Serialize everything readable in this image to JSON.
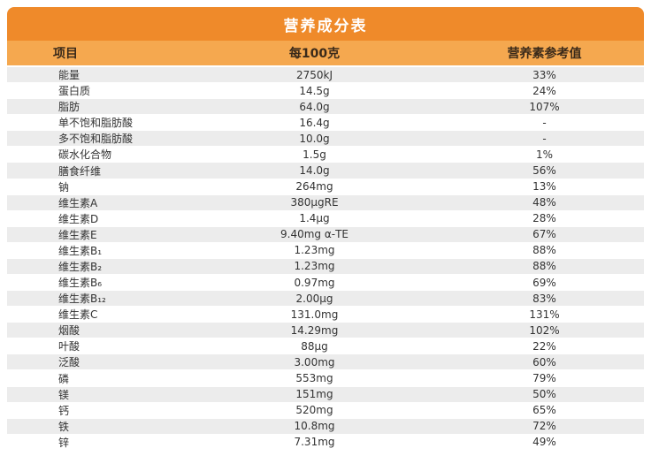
{
  "title": "营养成分表",
  "table": {
    "header": [
      "项目",
      "每100克",
      "营养素参考值"
    ],
    "rows": [
      [
        "能量",
        "2750kJ",
        "33%"
      ],
      [
        "蛋白质",
        "14.5g",
        "24%"
      ],
      [
        "脂肪",
        "64.0g",
        "107%"
      ],
      [
        "单不饱和脂肪酸",
        "16.4g",
        "-"
      ],
      [
        "多不饱和脂肪酸",
        "10.0g",
        "-"
      ],
      [
        "碳水化合物",
        "1.5g",
        "1%"
      ],
      [
        "膳食纤维",
        "14.0g",
        "56%"
      ],
      [
        "钠",
        "264mg",
        "13%"
      ],
      [
        "维生素A",
        "380μgRE",
        "48%"
      ],
      [
        "维生素D",
        "1.4μg",
        "28%"
      ],
      [
        "维生素E",
        "9.40mg α-TE",
        "67%"
      ],
      [
        "维生素B₁",
        "1.23mg",
        "88%"
      ],
      [
        "维生素B₂",
        "1.23mg",
        "88%"
      ],
      [
        "维生素B₆",
        "0.97mg",
        "69%"
      ],
      [
        "维生素B₁₂",
        "2.00μg",
        "83%"
      ],
      [
        "维生素C",
        "131.0mg",
        "131%"
      ],
      [
        "烟酸",
        "14.29mg",
        "102%"
      ],
      [
        "叶酸",
        "88μg",
        "22%"
      ],
      [
        "泛酸",
        "3.00mg",
        "60%"
      ],
      [
        "磷",
        "553mg",
        "79%"
      ],
      [
        "镁",
        "151mg",
        "50%"
      ],
      [
        "钙",
        "520mg",
        "65%"
      ],
      [
        "铁",
        "10.8mg",
        "72%"
      ],
      [
        "锌",
        "7.31mg",
        "49%"
      ]
    ]
  }
}
